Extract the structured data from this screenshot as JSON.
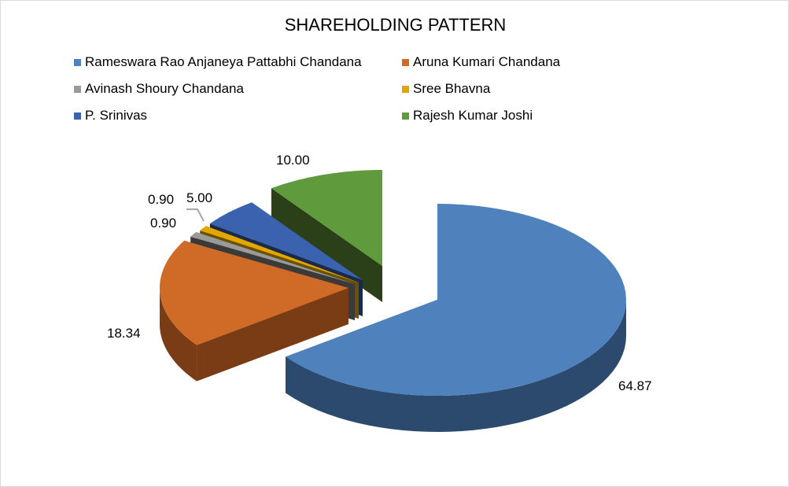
{
  "chart_data": {
    "type": "pie",
    "title": "SHAREHOLDING PATTERN",
    "style": "3d-exploded",
    "legend_position": "top",
    "series": [
      {
        "name": "Rameswara Rao Anjaneya Pattabhi Chandana",
        "value": 64.87,
        "label": "64.87",
        "color": "#4f81bd"
      },
      {
        "name": "Aruna Kumari Chandana",
        "value": 18.34,
        "label": "18.34",
        "color": "#d06b27"
      },
      {
        "name": "Avinash Shoury Chandana",
        "value": 0.9,
        "label": "0.90",
        "color": "#9a9a9a"
      },
      {
        "name": "Sree Bhavna",
        "value": 0.9,
        "label": "0.90",
        "color": "#e3a600"
      },
      {
        "name": "P. Srinivas",
        "value": 5.0,
        "label": "5.00",
        "color": "#3a62ae"
      },
      {
        "name": "Rajesh Kumar Joshi",
        "value": 10.0,
        "label": "10.00",
        "color": "#5f9a3c"
      }
    ]
  }
}
